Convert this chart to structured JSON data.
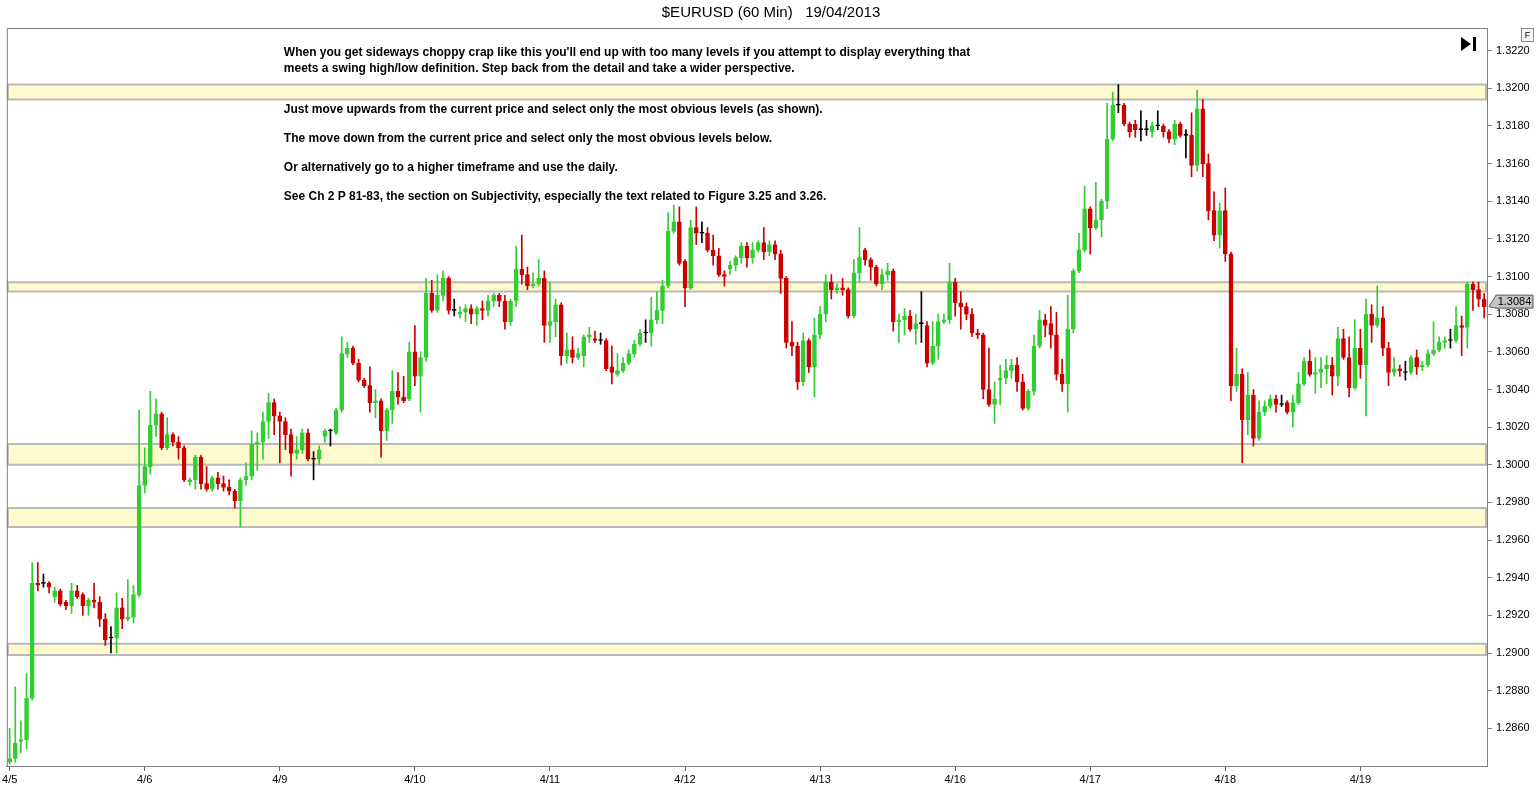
{
  "chart_data": {
    "type": "candlestick",
    "title": "$EURUSD (60 Min)   19/04/2013",
    "categories": [
      "4/5",
      null,
      null,
      null,
      null,
      null,
      null,
      null,
      null,
      null,
      null,
      null,
      null,
      null,
      null,
      null,
      null,
      null,
      null,
      null,
      null,
      null,
      null,
      null,
      "4/6",
      null,
      null,
      null,
      null,
      null,
      null,
      null,
      null,
      null,
      null,
      null,
      null,
      null,
      null,
      null,
      null,
      null,
      null,
      null,
      null,
      null,
      null,
      null,
      "4/9",
      null,
      null,
      null,
      null,
      null,
      null,
      null,
      null,
      null,
      null,
      null,
      null,
      null,
      null,
      null,
      null,
      null,
      null,
      null,
      null,
      null,
      null,
      null,
      "4/10",
      null,
      null,
      null,
      null,
      null,
      null,
      null,
      null,
      null,
      null,
      null,
      null,
      null,
      null,
      null,
      null,
      null,
      null,
      null,
      null,
      null,
      null,
      null,
      "4/11",
      null,
      null,
      null,
      null,
      null,
      null,
      null,
      null,
      null,
      null,
      null,
      null,
      null,
      null,
      null,
      null,
      null,
      null,
      null,
      null,
      null,
      null,
      null,
      "4/12",
      null,
      null,
      null,
      null,
      null,
      null,
      null,
      null,
      null,
      null,
      null,
      null,
      null,
      null,
      null,
      null,
      null,
      null,
      null,
      null,
      null,
      null,
      null,
      "4/13",
      null,
      null,
      null,
      null,
      null,
      null,
      null,
      null,
      null,
      null,
      null,
      null,
      null,
      null,
      null,
      null,
      null,
      null,
      null,
      null,
      null,
      null,
      null,
      "4/16",
      null,
      null,
      null,
      null,
      null,
      null,
      null,
      null,
      null,
      null,
      null,
      null,
      null,
      null,
      null,
      null,
      null,
      null,
      null,
      null,
      null,
      null,
      null,
      "4/17",
      null,
      null,
      null,
      null,
      null,
      null,
      null,
      null,
      null,
      null,
      null,
      null,
      null,
      null,
      null,
      null,
      null,
      null,
      null,
      null,
      null,
      null,
      null,
      "4/18",
      null,
      null,
      null,
      null,
      null,
      null,
      null,
      null,
      null,
      null,
      null,
      null,
      null,
      null,
      null,
      null,
      null,
      null,
      null,
      null,
      null,
      null,
      null,
      "4/19",
      null,
      null,
      null,
      null,
      null,
      null,
      null,
      null,
      null,
      null,
      null,
      null,
      null,
      null,
      null,
      null,
      null,
      null,
      null,
      null,
      null,
      null
    ],
    "ohlc": [
      [
        1.2842,
        1.286,
        1.2841,
        1.2844
      ],
      [
        1.2844,
        1.2882,
        1.2842,
        1.2852
      ],
      [
        1.2853,
        1.2864,
        1.2847,
        1.2854
      ],
      [
        1.2854,
        1.2889,
        1.2849,
        1.2876
      ],
      [
        1.2876,
        1.2948,
        1.2875,
        1.2937
      ],
      [
        1.2937,
        1.2948,
        1.2933,
        1.2936
      ],
      [
        1.2937,
        1.2942,
        1.2935,
        1.2937
      ],
      [
        1.2937,
        1.2938,
        1.2932,
        1.2935
      ],
      [
        1.293,
        1.2935,
        1.2927,
        1.2933
      ],
      [
        1.2933,
        1.2934,
        1.2925,
        1.2926
      ],
      [
        1.2927,
        1.2928,
        1.2923,
        1.2925
      ],
      [
        1.2925,
        1.2937,
        1.2921,
        1.2933
      ],
      [
        1.2933,
        1.2936,
        1.2929,
        1.293
      ],
      [
        1.2931,
        1.2932,
        1.292,
        1.2925
      ],
      [
        1.2925,
        1.2929,
        1.292,
        1.2928
      ],
      [
        1.2928,
        1.2937,
        1.2924,
        1.2927
      ],
      [
        1.2927,
        1.293,
        1.2914,
        1.2918
      ],
      [
        1.2918,
        1.2921,
        1.2904,
        1.2907
      ],
      [
        1.2908,
        1.2914,
        1.29,
        1.2908
      ],
      [
        1.2908,
        1.2932,
        1.29,
        1.2924
      ],
      [
        1.2924,
        1.2929,
        1.2913,
        1.2918
      ],
      [
        1.2918,
        1.2939,
        1.2917,
        1.2919
      ],
      [
        1.2919,
        1.2936,
        1.2916,
        1.2931
      ],
      [
        1.2931,
        1.3029,
        1.293,
        1.2989
      ],
      [
        1.2989,
        1.3009,
        1.2985,
        1.2999
      ],
      [
        1.2999,
        1.3039,
        1.2995,
        1.3021
      ],
      [
        1.3021,
        1.3035,
        1.3015,
        1.3027
      ],
      [
        1.3027,
        1.3028,
        1.3008,
        1.3009
      ],
      [
        1.3009,
        1.3025,
        1.3008,
        1.3016
      ],
      [
        1.3016,
        1.3017,
        1.301,
        1.3012
      ],
      [
        1.3012,
        1.3015,
        1.3003,
        1.3009
      ],
      [
        1.3009,
        1.301,
        1.2991,
        1.2992
      ],
      [
        1.2991,
        1.2993,
        1.2989,
        1.2992
      ],
      [
        1.2992,
        1.3005,
        1.2987,
        1.3004
      ],
      [
        1.3004,
        1.3005,
        1.2987,
        1.299
      ],
      [
        1.299,
        1.2999,
        1.2986,
        1.2987
      ],
      [
        1.2987,
        1.2994,
        1.2986,
        1.2993
      ],
      [
        1.2993,
        1.2996,
        1.2987,
        1.299
      ],
      [
        1.299,
        1.2994,
        1.2986,
        1.2988
      ],
      [
        1.2988,
        1.2992,
        1.2984,
        1.2986
      ],
      [
        1.2986,
        1.2987,
        1.2977,
        1.2981
      ],
      [
        1.2981,
        1.2993,
        1.2967,
        1.2992
      ],
      [
        1.2992,
        1.3001,
        1.2989,
        1.2994
      ],
      [
        1.2994,
        1.3018,
        1.2992,
        1.3011
      ],
      [
        1.3011,
        1.3017,
        1.2997,
        1.3012
      ],
      [
        1.3012,
        1.3028,
        1.3003,
        1.3023
      ],
      [
        1.3023,
        1.3038,
        1.3014,
        1.3033
      ],
      [
        1.3033,
        1.3035,
        1.3016,
        1.3026
      ],
      [
        1.3026,
        1.3028,
        1.3001,
        1.3023
      ],
      [
        1.3023,
        1.3025,
        1.3008,
        1.3016
      ],
      [
        1.3016,
        1.3019,
        1.2994,
        1.3006
      ],
      [
        1.3006,
        1.3015,
        1.3003,
        1.3008
      ],
      [
        1.3008,
        1.3019,
        1.3006,
        1.3017
      ],
      [
        1.3017,
        1.3019,
        1.3002,
        1.3003
      ],
      [
        1.3003,
        1.3007,
        1.2992,
        1.3003
      ],
      [
        1.3003,
        1.301,
        1.3,
        1.3008
      ],
      [
        1.3015,
        1.3019,
        1.3012,
        1.3018
      ],
      [
        1.3018,
        1.3019,
        1.301,
        1.3018
      ],
      [
        1.3017,
        1.303,
        1.3016,
        1.3029
      ],
      [
        1.3029,
        1.3068,
        1.3028,
        1.3059
      ],
      [
        1.3059,
        1.3065,
        1.3057,
        1.3062
      ],
      [
        1.3062,
        1.3063,
        1.3053,
        1.3054
      ],
      [
        1.3054,
        1.3056,
        1.3044,
        1.3045
      ],
      [
        1.3045,
        1.3046,
        1.3041,
        1.3042
      ],
      [
        1.3042,
        1.3052,
        1.3028,
        1.3033
      ],
      [
        1.3033,
        1.304,
        1.3025,
        1.3034
      ],
      [
        1.3034,
        1.3035,
        1.3004,
        1.3018
      ],
      [
        1.3018,
        1.303,
        1.3013,
        1.3029
      ],
      [
        1.3029,
        1.305,
        1.3022,
        1.3039
      ],
      [
        1.3039,
        1.3049,
        1.3032,
        1.3036
      ],
      [
        1.3036,
        1.3047,
        1.3033,
        1.3034
      ],
      [
        1.3035,
        1.3065,
        1.3034,
        1.306
      ],
      [
        1.306,
        1.3074,
        1.3042,
        1.3047
      ],
      [
        1.3047,
        1.306,
        1.3028,
        1.3057
      ],
      [
        1.3057,
        1.3099,
        1.3055,
        1.3091
      ],
      [
        1.3091,
        1.3098,
        1.3081,
        1.3082
      ],
      [
        1.3082,
        1.3101,
        1.3081,
        1.309
      ],
      [
        1.309,
        1.3103,
        1.3087,
        1.3099
      ],
      [
        1.3099,
        1.31,
        1.308,
        1.3082
      ],
      [
        1.3082,
        1.3088,
        1.3079,
        1.3082
      ],
      [
        1.308,
        1.3084,
        1.3078,
        1.3081
      ],
      [
        1.3081,
        1.3085,
        1.3076,
        1.3083
      ],
      [
        1.3083,
        1.3085,
        1.3075,
        1.308
      ],
      [
        1.308,
        1.3084,
        1.3074,
        1.3083
      ],
      [
        1.3083,
        1.3087,
        1.3077,
        1.3082
      ],
      [
        1.3082,
        1.309,
        1.3079,
        1.3087
      ],
      [
        1.3087,
        1.3091,
        1.3084,
        1.309
      ],
      [
        1.309,
        1.3091,
        1.3084,
        1.3087
      ],
      [
        1.3087,
        1.309,
        1.3072,
        1.3076
      ],
      [
        1.3076,
        1.3088,
        1.3074,
        1.3087
      ],
      [
        1.3087,
        1.3116,
        1.3084,
        1.3104
      ],
      [
        1.3104,
        1.3122,
        1.3096,
        1.3101
      ],
      [
        1.3101,
        1.3105,
        1.3093,
        1.3095
      ],
      [
        1.3095,
        1.3102,
        1.3094,
        1.3096
      ],
      [
        1.3096,
        1.3109,
        1.3095,
        1.3099
      ],
      [
        1.3099,
        1.3103,
        1.3065,
        1.3074
      ],
      [
        1.3074,
        1.3097,
        1.3065,
        1.3076
      ],
      [
        1.3076,
        1.3088,
        1.3068,
        1.3085
      ],
      [
        1.3085,
        1.3086,
        1.3053,
        1.3058
      ],
      [
        1.3058,
        1.307,
        1.3054,
        1.3061
      ],
      [
        1.3061,
        1.3068,
        1.3054,
        1.3057
      ],
      [
        1.3057,
        1.3062,
        1.3056,
        1.3059
      ],
      [
        1.3058,
        1.3069,
        1.3052,
        1.3068
      ],
      [
        1.3068,
        1.3073,
        1.3065,
        1.3069
      ],
      [
        1.3067,
        1.3071,
        1.3065,
        1.3066
      ],
      [
        1.3066,
        1.307,
        1.3064,
        1.3066
      ],
      [
        1.3066,
        1.3067,
        1.305,
        1.3051
      ],
      [
        1.3052,
        1.3063,
        1.3043,
        1.3049
      ],
      [
        1.3048,
        1.3059,
        1.3047,
        1.305
      ],
      [
        1.305,
        1.3057,
        1.3049,
        1.3054
      ],
      [
        1.3054,
        1.3061,
        1.3053,
        1.3059
      ],
      [
        1.3059,
        1.3066,
        1.3057,
        1.3064
      ],
      [
        1.3064,
        1.3072,
        1.3063,
        1.307
      ],
      [
        1.307,
        1.3077,
        1.3065,
        1.307
      ],
      [
        1.307,
        1.3089,
        1.3063,
        1.3077
      ],
      [
        1.3077,
        1.3092,
        1.3075,
        1.3082
      ],
      [
        1.3082,
        1.3098,
        1.3075,
        1.3095
      ],
      [
        1.3095,
        1.3134,
        1.3094,
        1.3124
      ],
      [
        1.3124,
        1.3138,
        1.3123,
        1.3129
      ],
      [
        1.3129,
        1.3137,
        1.3106,
        1.3107
      ],
      [
        1.3108,
        1.3109,
        1.3084,
        1.3094
      ],
      [
        1.3094,
        1.313,
        1.3093,
        1.3126
      ],
      [
        1.3126,
        1.3137,
        1.3117,
        1.3123
      ],
      [
        1.3123,
        1.3129,
        1.3118,
        1.3123
      ],
      [
        1.3123,
        1.3126,
        1.3113,
        1.3114
      ],
      [
        1.3114,
        1.3122,
        1.3106,
        1.3111
      ],
      [
        1.3111,
        1.3115,
        1.31,
        1.3101
      ],
      [
        1.3101,
        1.3103,
        1.3095,
        1.31
      ],
      [
        1.3104,
        1.3108,
        1.3101,
        1.3106
      ],
      [
        1.3106,
        1.3111,
        1.3103,
        1.311
      ],
      [
        1.311,
        1.3118,
        1.3107,
        1.3116
      ],
      [
        1.3116,
        1.3118,
        1.3105,
        1.311
      ],
      [
        1.311,
        1.3118,
        1.3107,
        1.3114
      ],
      [
        1.3114,
        1.3119,
        1.3113,
        1.3118
      ],
      [
        1.3118,
        1.3126,
        1.3109,
        1.3113
      ],
      [
        1.3113,
        1.3119,
        1.3111,
        1.3117
      ],
      [
        1.3117,
        1.3119,
        1.3109,
        1.3112
      ],
      [
        1.3112,
        1.3114,
        1.3091,
        1.3099
      ],
      [
        1.3099,
        1.31,
        1.3062,
        1.3065
      ],
      [
        1.3065,
        1.3076,
        1.3058,
        1.3063
      ],
      [
        1.3063,
        1.3065,
        1.304,
        1.3044
      ],
      [
        1.3044,
        1.307,
        1.3042,
        1.3066
      ],
      [
        1.3066,
        1.3067,
        1.3049,
        1.3052
      ],
      [
        1.3052,
        1.3078,
        1.3036,
        1.3069
      ],
      [
        1.3069,
        1.3084,
        1.3067,
        1.308
      ],
      [
        1.308,
        1.3101,
        1.3076,
        1.3097
      ],
      [
        1.3097,
        1.3101,
        1.3088,
        1.3093
      ],
      [
        1.3093,
        1.3096,
        1.3091,
        1.3094
      ],
      [
        1.3094,
        1.3099,
        1.309,
        1.3093
      ],
      [
        1.3093,
        1.3094,
        1.3078,
        1.3079
      ],
      [
        1.3079,
        1.3109,
        1.3078,
        1.3102
      ],
      [
        1.3102,
        1.3126,
        1.3097,
        1.311
      ],
      [
        1.3114,
        1.3115,
        1.3106,
        1.3109
      ],
      [
        1.3109,
        1.311,
        1.3098,
        1.3105
      ],
      [
        1.3105,
        1.3106,
        1.3095,
        1.3096
      ],
      [
        1.3096,
        1.3104,
        1.3093,
        1.3101
      ],
      [
        1.3101,
        1.3107,
        1.3098,
        1.3103
      ],
      [
        1.3103,
        1.3104,
        1.3071,
        1.3076
      ],
      [
        1.3076,
        1.308,
        1.3065,
        1.3077
      ],
      [
        1.3077,
        1.3083,
        1.3069,
        1.3079
      ],
      [
        1.3079,
        1.3082,
        1.3071,
        1.3072
      ],
      [
        1.3072,
        1.308,
        1.3064,
        1.3075
      ],
      [
        1.3075,
        1.3092,
        1.3065,
        1.3075
      ],
      [
        1.3074,
        1.3076,
        1.3052,
        1.3054
      ],
      [
        1.3054,
        1.3076,
        1.3053,
        1.3063
      ],
      [
        1.3063,
        1.308,
        1.3056,
        1.3076
      ],
      [
        1.3076,
        1.308,
        1.3075,
        1.3077
      ],
      [
        1.3077,
        1.3107,
        1.3075,
        1.3097
      ],
      [
        1.3097,
        1.3099,
        1.3079,
        1.3086
      ],
      [
        1.3086,
        1.3092,
        1.3072,
        1.3084
      ],
      [
        1.3084,
        1.3086,
        1.3077,
        1.308
      ],
      [
        1.308,
        1.3083,
        1.3068,
        1.307
      ],
      [
        1.307,
        1.3072,
        1.3067,
        1.3069
      ],
      [
        1.3069,
        1.307,
        1.3035,
        1.304
      ],
      [
        1.304,
        1.3062,
        1.3031,
        1.3032
      ],
      [
        1.3032,
        1.3044,
        1.3022,
        1.3035
      ],
      [
        1.3045,
        1.3053,
        1.3032,
        1.3046
      ],
      [
        1.3046,
        1.3056,
        1.3043,
        1.305
      ],
      [
        1.305,
        1.3056,
        1.3046,
        1.3053
      ],
      [
        1.3053,
        1.3057,
        1.3039,
        1.3044
      ],
      [
        1.3044,
        1.3048,
        1.3029,
        1.303
      ],
      [
        1.303,
        1.304,
        1.3029,
        1.3039
      ],
      [
        1.3039,
        1.3069,
        1.3037,
        1.3063
      ],
      [
        1.3063,
        1.3082,
        1.3062,
        1.3077
      ],
      [
        1.3077,
        1.308,
        1.3068,
        1.3074
      ],
      [
        1.3075,
        1.3084,
        1.3062,
        1.3069
      ],
      [
        1.3069,
        1.3081,
        1.3045,
        1.3048
      ],
      [
        1.3048,
        1.3056,
        1.3039,
        1.3043
      ],
      [
        1.3043,
        1.309,
        1.3028,
        1.3072
      ],
      [
        1.3072,
        1.3104,
        1.307,
        1.3103
      ],
      [
        1.3103,
        1.3123,
        1.3102,
        1.3114
      ],
      [
        1.3114,
        1.3148,
        1.3113,
        1.3136
      ],
      [
        1.3136,
        1.3137,
        1.3112,
        1.3126
      ],
      [
        1.3126,
        1.315,
        1.3125,
        1.313
      ],
      [
        1.313,
        1.3141,
        1.3121,
        1.314
      ],
      [
        1.314,
        1.3192,
        1.3136,
        1.3173
      ],
      [
        1.3173,
        1.3198,
        1.3172,
        1.3191
      ],
      [
        1.3191,
        1.3202,
        1.3187,
        1.3191
      ],
      [
        1.3191,
        1.3192,
        1.318,
        1.3181
      ],
      [
        1.3181,
        1.3182,
        1.3174,
        1.3177
      ],
      [
        1.3181,
        1.3183,
        1.3174,
        1.3178
      ],
      [
        1.3178,
        1.3188,
        1.3172,
        1.3178
      ],
      [
        1.3178,
        1.3183,
        1.3175,
        1.3178
      ],
      [
        1.3177,
        1.3182,
        1.3174,
        1.318
      ],
      [
        1.318,
        1.3188,
        1.3178,
        1.318
      ],
      [
        1.318,
        1.3181,
        1.3174,
        1.3177
      ],
      [
        1.3177,
        1.3178,
        1.3171,
        1.3173
      ],
      [
        1.3173,
        1.3183,
        1.317,
        1.3181
      ],
      [
        1.3181,
        1.3182,
        1.3174,
        1.3175
      ],
      [
        1.3175,
        1.3178,
        1.3163,
        1.3175
      ],
      [
        1.3175,
        1.3187,
        1.3153,
        1.3159
      ],
      [
        1.3159,
        1.3199,
        1.3156,
        1.3189
      ],
      [
        1.3189,
        1.3194,
        1.3153,
        1.316
      ],
      [
        1.316,
        1.3165,
        1.313,
        1.3135
      ],
      [
        1.3135,
        1.3145,
        1.3119,
        1.3122
      ],
      [
        1.3122,
        1.3139,
        1.3115,
        1.3135
      ],
      [
        1.3135,
        1.3147,
        1.3108,
        1.3112
      ],
      [
        1.3112,
        1.3113,
        1.3034,
        1.3042
      ],
      [
        1.3042,
        1.3062,
        1.3039,
        1.3048
      ],
      [
        1.3048,
        1.3051,
        1.3001,
        1.3024
      ],
      [
        1.3024,
        1.3049,
        1.3016,
        1.3037
      ],
      [
        1.3037,
        1.304,
        1.301,
        1.3014
      ],
      [
        1.3014,
        1.3034,
        1.3013,
        1.3028
      ],
      [
        1.3028,
        1.3034,
        1.3026,
        1.3031
      ],
      [
        1.3031,
        1.3037,
        1.303,
        1.3035
      ],
      [
        1.3035,
        1.3037,
        1.3028,
        1.3032
      ],
      [
        1.3032,
        1.3037,
        1.3031,
        1.3032
      ],
      [
        1.3033,
        1.3034,
        1.3027,
        1.3028
      ],
      [
        1.3028,
        1.3037,
        1.302,
        1.3033
      ],
      [
        1.3033,
        1.3049,
        1.3032,
        1.3043
      ],
      [
        1.3043,
        1.3057,
        1.3042,
        1.3055
      ],
      [
        1.3055,
        1.3061,
        1.3047,
        1.3048
      ],
      [
        1.3048,
        1.3057,
        1.3038,
        1.3049
      ],
      [
        1.3049,
        1.3057,
        1.3041,
        1.3051
      ],
      [
        1.3051,
        1.3058,
        1.3043,
        1.3053
      ],
      [
        1.3053,
        1.3057,
        1.3037,
        1.3047
      ],
      [
        1.3047,
        1.3073,
        1.3042,
        1.3067
      ],
      [
        1.3067,
        1.3072,
        1.3056,
        1.3057
      ],
      [
        1.3057,
        1.3068,
        1.3036,
        1.3041
      ],
      [
        1.3041,
        1.3077,
        1.304,
        1.3062
      ],
      [
        1.3062,
        1.3072,
        1.3046,
        1.3053
      ],
      [
        1.3053,
        1.3088,
        1.3026,
        1.308
      ],
      [
        1.308,
        1.3085,
        1.3065,
        1.3074
      ],
      [
        1.3074,
        1.3095,
        1.3073,
        1.3078
      ],
      [
        1.3078,
        1.3084,
        1.3058,
        1.3062
      ],
      [
        1.3062,
        1.3065,
        1.3042,
        1.3049
      ],
      [
        1.3049,
        1.3057,
        1.3047,
        1.3051
      ],
      [
        1.3051,
        1.3053,
        1.3047,
        1.305
      ],
      [
        1.3049,
        1.3055,
        1.3045,
        1.3049
      ],
      [
        1.3049,
        1.3058,
        1.3048,
        1.3057
      ],
      [
        1.3057,
        1.3061,
        1.3048,
        1.3052
      ],
      [
        1.3052,
        1.3055,
        1.305,
        1.3053
      ],
      [
        1.3053,
        1.3061,
        1.3052,
        1.3059
      ],
      [
        1.3059,
        1.3076,
        1.3058,
        1.3061
      ],
      [
        1.3061,
        1.3068,
        1.306,
        1.3065
      ],
      [
        1.3065,
        1.3068,
        1.3062,
        1.3066
      ],
      [
        1.3066,
        1.3072,
        1.3062,
        1.3066
      ],
      [
        1.3066,
        1.3084,
        1.3065,
        1.3074
      ],
      [
        1.3074,
        1.3079,
        1.3058,
        1.3073
      ],
      [
        1.3073,
        1.3097,
        1.3062,
        1.3096
      ],
      [
        1.3096,
        1.3097,
        1.3082,
        1.3093
      ],
      [
        1.3093,
        1.3097,
        1.3084,
        1.3088
      ],
      [
        1.3088,
        1.3091,
        1.3078,
        1.3084
      ]
    ],
    "colors": [
      "#32cd32",
      "#32cd32",
      "#32cd32",
      "#32cd32",
      "#32cd32",
      "#cc0000",
      "#000000",
      "#cc0000",
      "#32cd32",
      "#cc0000",
      "#cc0000",
      "#32cd32",
      "#cc0000",
      "#cc0000",
      "#32cd32",
      "#cc0000",
      "#cc0000",
      "#cc0000",
      "#000000",
      "#32cd32",
      "#cc0000",
      "#32cd32",
      "#32cd32",
      "#32cd32",
      "#32cd32",
      "#32cd32",
      "#32cd32",
      "#cc0000",
      "#32cd32",
      "#cc0000",
      "#cc0000",
      "#cc0000",
      "#32cd32",
      "#32cd32",
      "#cc0000",
      "#cc0000",
      "#32cd32",
      "#cc0000",
      "#cc0000",
      "#cc0000",
      "#cc0000",
      "#32cd32",
      "#32cd32",
      "#32cd32",
      "#32cd32",
      "#32cd32",
      "#32cd32",
      "#cc0000",
      "#cc0000",
      "#cc0000",
      "#cc0000",
      "#32cd32",
      "#32cd32",
      "#cc0000",
      "#000000",
      "#32cd32",
      "#32cd32",
      "#000000",
      "#32cd32",
      "#32cd32",
      "#32cd32",
      "#cc0000",
      "#cc0000",
      "#cc0000",
      "#cc0000",
      "#32cd32",
      "#cc0000",
      "#32cd32",
      "#32cd32",
      "#cc0000",
      "#cc0000",
      "#32cd32",
      "#cc0000",
      "#32cd32",
      "#32cd32",
      "#cc0000",
      "#32cd32",
      "#32cd32",
      "#cc0000",
      "#000000",
      "#32cd32",
      "#32cd32",
      "#cc0000",
      "#32cd32",
      "#cc0000",
      "#32cd32",
      "#32cd32",
      "#cc0000",
      "#cc0000",
      "#32cd32",
      "#32cd32",
      "#cc0000",
      "#cc0000",
      "#32cd32",
      "#32cd32",
      "#cc0000",
      "#32cd32",
      "#32cd32",
      "#cc0000",
      "#32cd32",
      "#cc0000",
      "#32cd32",
      "#32cd32",
      "#32cd32",
      "#cc0000",
      "#000000",
      "#cc0000",
      "#cc0000",
      "#32cd32",
      "#32cd32",
      "#32cd32",
      "#32cd32",
      "#32cd32",
      "#000000",
      "#32cd32",
      "#32cd32",
      "#32cd32",
      "#32cd32",
      "#32cd32",
      "#cc0000",
      "#cc0000",
      "#32cd32",
      "#cc0000",
      "#000000",
      "#cc0000",
      "#cc0000",
      "#cc0000",
      "#cc0000",
      "#32cd32",
      "#32cd32",
      "#32cd32",
      "#cc0000",
      "#32cd32",
      "#32cd32",
      "#cc0000",
      "#32cd32",
      "#cc0000",
      "#cc0000",
      "#cc0000",
      "#cc0000",
      "#cc0000",
      "#32cd32",
      "#cc0000",
      "#32cd32",
      "#32cd32",
      "#32cd32",
      "#cc0000",
      "#32cd32",
      "#cc0000",
      "#cc0000",
      "#32cd32",
      "#32cd32",
      "#cc0000",
      "#cc0000",
      "#cc0000",
      "#32cd32",
      "#32cd32",
      "#cc0000",
      "#32cd32",
      "#32cd32",
      "#cc0000",
      "#32cd32",
      "#000000",
      "#cc0000",
      "#32cd32",
      "#32cd32",
      "#32cd32",
      "#32cd32",
      "#cc0000",
      "#cc0000",
      "#cc0000",
      "#cc0000",
      "#cc0000",
      "#cc0000",
      "#cc0000",
      "#32cd32",
      "#32cd32",
      "#32cd32",
      "#32cd32",
      "#cc0000",
      "#cc0000",
      "#32cd32",
      "#32cd32",
      "#32cd32",
      "#cc0000",
      "#cc0000",
      "#cc0000",
      "#cc0000",
      "#32cd32",
      "#32cd32",
      "#32cd32",
      "#32cd32",
      "#cc0000",
      "#32cd32",
      "#32cd32",
      "#32cd32",
      "#32cd32",
      "#000000",
      "#cc0000",
      "#cc0000",
      "#cc0000",
      "#000000",
      "#000000",
      "#32cd32",
      "#000000",
      "#cc0000",
      "#cc0000",
      "#32cd32",
      "#cc0000",
      "#000000",
      "#cc0000",
      "#32cd32",
      "#cc0000",
      "#cc0000",
      "#cc0000",
      "#32cd32",
      "#cc0000",
      "#cc0000",
      "#32cd32",
      "#cc0000",
      "#32cd32",
      "#cc0000",
      "#32cd32",
      "#32cd32",
      "#32cd32",
      "#cc0000",
      "#000000",
      "#cc0000",
      "#32cd32",
      "#32cd32",
      "#32cd32",
      "#cc0000",
      "#32cd32",
      "#32cd32",
      "#32cd32",
      "#cc0000",
      "#32cd32",
      "#cc0000",
      "#cc0000",
      "#32cd32",
      "#cc0000",
      "#32cd32",
      "#cc0000",
      "#32cd32",
      "#cc0000",
      "#cc0000",
      "#32cd32",
      "#cc0000",
      "#000000",
      "#32cd32",
      "#cc0000",
      "#32cd32",
      "#32cd32",
      "#32cd32",
      "#32cd32",
      "#32cd32",
      "#000000",
      "#32cd32",
      "#cc0000",
      "#32cd32",
      "#cc0000",
      "#cc0000",
      "#cc0000"
    ],
    "ylim": [
      1.284,
      1.3232
    ],
    "yticks": [
      {
        "value": 1.286,
        "label": "1.2860"
      },
      {
        "value": 1.288,
        "label": "1.2880"
      },
      {
        "value": 1.29,
        "label": "1.2900"
      },
      {
        "value": 1.292,
        "label": "1.2920"
      },
      {
        "value": 1.294,
        "label": "1.2940"
      },
      {
        "value": 1.296,
        "label": "1.2960"
      },
      {
        "value": 1.298,
        "label": "1.2980"
      },
      {
        "value": 1.3,
        "label": "1.3000"
      },
      {
        "value": 1.302,
        "label": "1.3020"
      },
      {
        "value": 1.304,
        "label": "1.3040"
      },
      {
        "value": 1.306,
        "label": "1.3060"
      },
      {
        "value": 1.308,
        "label": "1.3080"
      },
      {
        "value": 1.31,
        "label": "1.3100"
      },
      {
        "value": 1.312,
        "label": "1.3120"
      },
      {
        "value": 1.314,
        "label": "1.3140"
      },
      {
        "value": 1.316,
        "label": "1.3160"
      },
      {
        "value": 1.318,
        "label": "1.3180"
      },
      {
        "value": 1.32,
        "label": "1.3200"
      },
      {
        "value": 1.322,
        "label": "1.3220"
      }
    ],
    "bands": [
      {
        "axis": "y",
        "from": 1.3194,
        "to": 1.3202,
        "color": "#fffacd"
      },
      {
        "axis": "y",
        "from": 1.3092,
        "to": 1.3097,
        "color": "#fffacd"
      },
      {
        "axis": "y",
        "from": 1.3,
        "to": 1.3011,
        "color": "#fffacd"
      },
      {
        "axis": "y",
        "from": 1.2967,
        "to": 1.2977,
        "color": "#fffacd"
      },
      {
        "axis": "y",
        "from": 1.2899,
        "to": 1.2905,
        "color": "#fffacd"
      }
    ],
    "annotations": [
      "When you get sideways choppy crap like this you'll end up with too many levels if you attempt to display everything that meets a swing high/low definition. Step back from the detail and take a wider perspective.",
      "Just move upwards from the current price and select only the most obvious levels (as shown).",
      "The move down from the current price and select only the most obvious levels below.",
      "Or alternatively go to a higher timeframe and use the daily.",
      "See Ch 2 P 81-83, the section on Subjectivity, especially the text related to Figure 3.25 and 3.26.",
      "F",
      "1.3084"
    ]
  }
}
